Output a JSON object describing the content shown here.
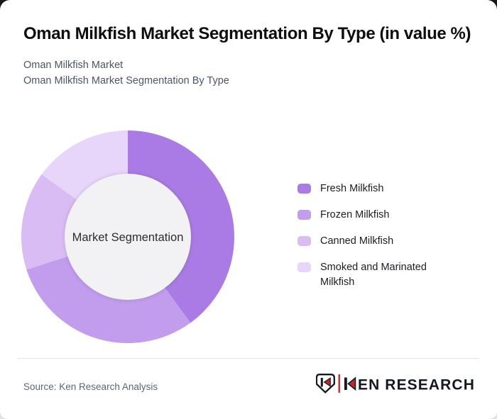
{
  "header": {
    "title": "Oman Milkfish Market Segmentation By Type (in value %)",
    "subtitle_line1": "Oman Milkfish Market",
    "subtitle_line2": "Oman Milkfish Market Segmentation By Type"
  },
  "chart_data": {
    "type": "pie",
    "subtype": "donut",
    "title": "Oman Milkfish Market Segmentation By Type (in value %)",
    "center_label": "Market Segmentation",
    "labels": [
      "Fresh Milkfish",
      "Frozen Milkfish",
      "Canned Milkfish",
      "Smoked and Marinated Milkfish"
    ],
    "values": [
      40,
      30,
      15,
      15
    ],
    "unit": "percent of market value",
    "colors": [
      "#aa7be4",
      "#c29ced",
      "#d9bcf4",
      "#e7d5fa"
    ],
    "hole_color": "#f2f1f3",
    "start_angle_deg": 0,
    "direction": "clockwise",
    "inner_radius_ratio": 0.59,
    "legend_position": "right"
  },
  "footer": {
    "source": "Source: Ken Research Analysis",
    "logo": {
      "text": "KEN RESEARCH",
      "text_after_k": "EN RESEARCH",
      "accent_red": "#c1272d",
      "dark": "#15181e"
    }
  }
}
